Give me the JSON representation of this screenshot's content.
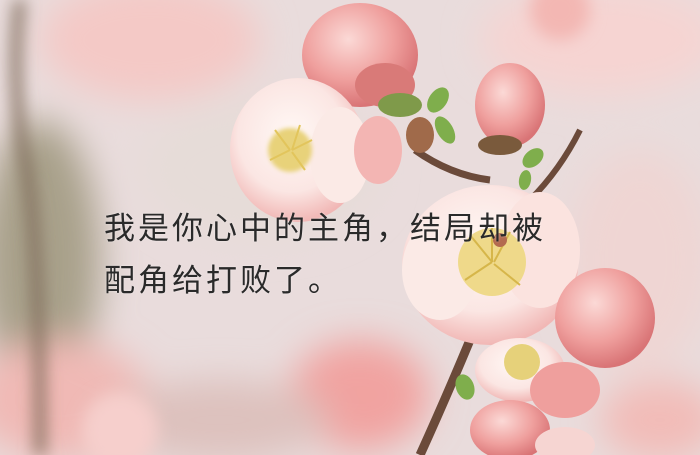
{
  "caption": {
    "line1": "我是你心中的主角，结局却被",
    "line2": "配角给打败了。"
  },
  "colors": {
    "petal": "#f9e4e2",
    "petal_pink": "#ee9c9c",
    "stamen": "#e9d47a",
    "branch": "#6b4a3a",
    "background": "#e9dcdc",
    "text": "#2a2a2a"
  }
}
